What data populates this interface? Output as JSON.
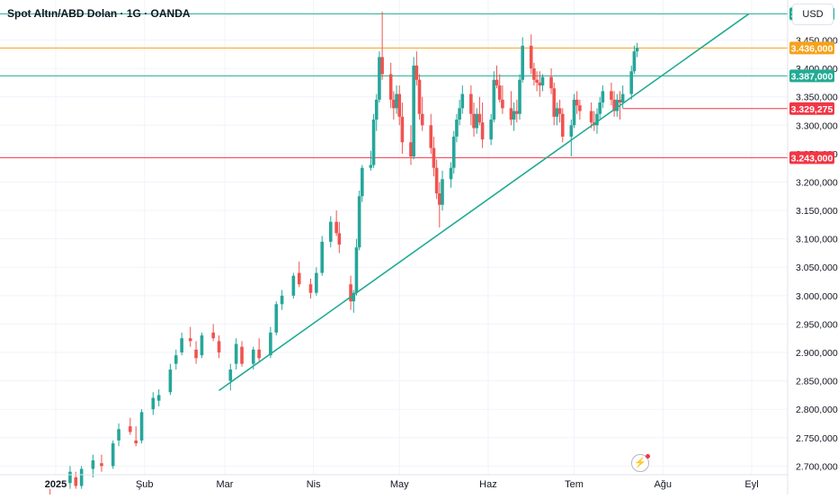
{
  "header": {
    "title": "Spot Altın/ABD Dolan · 1G · OANDA",
    "currency_button": "USD"
  },
  "icons": {
    "alert": "lightning-icon"
  },
  "colors": {
    "up": "#26a69a",
    "down": "#ef5350",
    "teal_line": "#22ab94",
    "orange_line": "#f7a21b",
    "red_line": "#f23645",
    "grid": "#f0f3fa",
    "axis_text": "#131722"
  },
  "chart_data": {
    "type": "candlestick",
    "ylim": [
      2680,
      3530
    ],
    "y_ticks": [
      "2.700,000",
      "2.750,000",
      "2.800,000",
      "2.850,000",
      "2.900,000",
      "2.950,000",
      "3.000,000",
      "3.050,000",
      "3.100,000",
      "3.150,000",
      "3.200,000",
      "3.250,000",
      "3.300,000",
      "3.350,000",
      "3.400,000",
      "3.450,000"
    ],
    "y_tick_values": [
      2700,
      2750,
      2800,
      2850,
      2900,
      2950,
      3000,
      3050,
      3100,
      3150,
      3200,
      3250,
      3300,
      3350,
      3400,
      3450
    ],
    "x_labels": [
      "2025",
      "Şub",
      "Mar",
      "Nis",
      "May",
      "Haz",
      "Tem",
      "Ağu",
      "Eyl"
    ],
    "x_label_dates": [
      "2025-01-01",
      "2025-02-01",
      "2025-03-01",
      "2025-04-01",
      "2025-05-01",
      "2025-06-01",
      "2025-07-01",
      "2025-08-01",
      "2025-09-01"
    ],
    "levels": [
      {
        "label": "3.496,071",
        "value": 3496.071,
        "color": "#22ab94"
      },
      {
        "label": "3.436,000",
        "value": 3436.0,
        "color": "#f7a21b"
      },
      {
        "label": "3.387,000",
        "value": 3387.0,
        "color": "#22ab94"
      },
      {
        "label": "3.329,275",
        "value": 3329.275,
        "color": "#f23645",
        "from_date": "2025-07-18"
      },
      {
        "label": "3.243,000",
        "value": 3243.0,
        "color": "#f23645"
      }
    ],
    "trendline": {
      "from_date": "2025-02-27",
      "from_value": 2833,
      "to_date": "2025-08-31",
      "to_value": 3496.071
    },
    "candles": [
      [
        "2024-12-30",
        2640,
        2660,
        2615,
        2625
      ],
      [
        "2025-01-06",
        2670,
        2700,
        2660,
        2690
      ],
      [
        "2025-01-08",
        2680,
        2690,
        2660,
        2665
      ],
      [
        "2025-01-10",
        2665,
        2700,
        2660,
        2695
      ],
      [
        "2025-01-14",
        2695,
        2720,
        2680,
        2710
      ],
      [
        "2025-01-17",
        2705,
        2720,
        2690,
        2700
      ],
      [
        "2025-01-21",
        2700,
        2745,
        2695,
        2740
      ],
      [
        "2025-01-23",
        2745,
        2775,
        2735,
        2765
      ],
      [
        "2025-01-27",
        2770,
        2785,
        2755,
        2760
      ],
      [
        "2025-01-29",
        2745,
        2770,
        2735,
        2740
      ],
      [
        "2025-01-31",
        2745,
        2800,
        2740,
        2795
      ],
      [
        "2025-02-04",
        2800,
        2830,
        2790,
        2820
      ],
      [
        "2025-02-06",
        2815,
        2835,
        2805,
        2825
      ],
      [
        "2025-02-10",
        2830,
        2880,
        2825,
        2870
      ],
      [
        "2025-02-12",
        2880,
        2905,
        2870,
        2895
      ],
      [
        "2025-02-14",
        2900,
        2935,
        2895,
        2925
      ],
      [
        "2025-02-17",
        2925,
        2945,
        2910,
        2920
      ],
      [
        "2025-02-19",
        2905,
        2920,
        2880,
        2890
      ],
      [
        "2025-02-21",
        2895,
        2935,
        2890,
        2930
      ],
      [
        "2025-02-25",
        2935,
        2950,
        2920,
        2925
      ],
      [
        "2025-02-27",
        2920,
        2930,
        2890,
        2900
      ],
      [
        "2025-03-03",
        2850,
        2880,
        2833,
        2870
      ],
      [
        "2025-03-05",
        2880,
        2925,
        2870,
        2915
      ],
      [
        "2025-03-07",
        2910,
        2920,
        2875,
        2880
      ],
      [
        "2025-03-11",
        2880,
        2910,
        2870,
        2905
      ],
      [
        "2025-03-13",
        2905,
        2925,
        2885,
        2890
      ],
      [
        "2025-03-17",
        2895,
        2945,
        2890,
        2935
      ],
      [
        "2025-03-19",
        2935,
        2990,
        2930,
        2985
      ],
      [
        "2025-03-21",
        2985,
        3010,
        2975,
        3000
      ],
      [
        "2025-03-25",
        3000,
        3040,
        2995,
        3035
      ],
      [
        "2025-03-27",
        3040,
        3060,
        3015,
        3020
      ],
      [
        "2025-03-31",
        3020,
        3030,
        2995,
        3005
      ],
      [
        "2025-04-02",
        3005,
        3050,
        3000,
        3040
      ],
      [
        "2025-04-04",
        3040,
        3105,
        3035,
        3095
      ],
      [
        "2025-04-07",
        3095,
        3140,
        3085,
        3130
      ],
      [
        "2025-04-09",
        3130,
        3150,
        3105,
        3110
      ],
      [
        "2025-04-10",
        3110,
        3130,
        3075,
        3090
      ],
      [
        "2025-04-14",
        3020,
        3035,
        2975,
        2990
      ],
      [
        "2025-04-15",
        2990,
        3010,
        2970,
        3005
      ],
      [
        "2025-04-16",
        3005,
        3100,
        3000,
        3085
      ],
      [
        "2025-04-17",
        3085,
        3185,
        3080,
        3175
      ],
      [
        "2025-04-18",
        3175,
        3230,
        3165,
        3225
      ],
      [
        "2025-04-21",
        3225,
        3255,
        3220,
        3230
      ],
      [
        "2025-04-22",
        3230,
        3320,
        3225,
        3310
      ],
      [
        "2025-04-23",
        3310,
        3355,
        3290,
        3345
      ],
      [
        "2025-04-24",
        3345,
        3430,
        3340,
        3420
      ],
      [
        "2025-04-25",
        3420,
        3500,
        3380,
        3390
      ],
      [
        "2025-04-28",
        3390,
        3410,
        3330,
        3345
      ],
      [
        "2025-04-29",
        3345,
        3360,
        3310,
        3330
      ],
      [
        "2025-04-30",
        3330,
        3370,
        3320,
        3355
      ],
      [
        "2025-05-01",
        3355,
        3370,
        3300,
        3315
      ],
      [
        "2025-05-02",
        3315,
        3340,
        3250,
        3270
      ],
      [
        "2025-05-05",
        3270,
        3300,
        3230,
        3245
      ],
      [
        "2025-05-06",
        3245,
        3420,
        3240,
        3405
      ],
      [
        "2025-05-07",
        3405,
        3430,
        3370,
        3380
      ],
      [
        "2025-05-08",
        3380,
        3390,
        3310,
        3320
      ],
      [
        "2025-05-09",
        3320,
        3350,
        3290,
        3300
      ],
      [
        "2025-05-12",
        3300,
        3320,
        3250,
        3260
      ],
      [
        "2025-05-13",
        3260,
        3280,
        3210,
        3225
      ],
      [
        "2025-05-14",
        3225,
        3240,
        3170,
        3180
      ],
      [
        "2025-05-15",
        3180,
        3200,
        3120,
        3160
      ],
      [
        "2025-05-16",
        3160,
        3220,
        3150,
        3205
      ],
      [
        "2025-05-19",
        3205,
        3235,
        3190,
        3225
      ],
      [
        "2025-05-20",
        3225,
        3290,
        3215,
        3280
      ],
      [
        "2025-05-21",
        3280,
        3320,
        3270,
        3310
      ],
      [
        "2025-05-22",
        3310,
        3345,
        3300,
        3330
      ],
      [
        "2025-05-23",
        3330,
        3370,
        3320,
        3355
      ],
      [
        "2025-05-26",
        3355,
        3370,
        3300,
        3320
      ],
      [
        "2025-05-27",
        3320,
        3340,
        3280,
        3295
      ],
      [
        "2025-05-28",
        3295,
        3330,
        3285,
        3320
      ],
      [
        "2025-05-29",
        3320,
        3350,
        3300,
        3305
      ],
      [
        "2025-05-30",
        3305,
        3340,
        3260,
        3275
      ],
      [
        "2025-06-02",
        3275,
        3320,
        3265,
        3310
      ],
      [
        "2025-06-03",
        3310,
        3395,
        3305,
        3380
      ],
      [
        "2025-06-04",
        3380,
        3405,
        3365,
        3370
      ],
      [
        "2025-06-05",
        3370,
        3390,
        3340,
        3345
      ],
      [
        "2025-06-06",
        3345,
        3370,
        3320,
        3330
      ],
      [
        "2025-06-09",
        3330,
        3360,
        3300,
        3310
      ],
      [
        "2025-06-10",
        3310,
        3340,
        3290,
        3325
      ],
      [
        "2025-06-11",
        3325,
        3345,
        3305,
        3320
      ],
      [
        "2025-06-12",
        3320,
        3390,
        3310,
        3380
      ],
      [
        "2025-06-13",
        3380,
        3455,
        3375,
        3440
      ],
      [
        "2025-06-16",
        3440,
        3460,
        3390,
        3400
      ],
      [
        "2025-06-17",
        3400,
        3410,
        3370,
        3380
      ],
      [
        "2025-06-18",
        3380,
        3395,
        3360,
        3375
      ],
      [
        "2025-06-19",
        3375,
        3395,
        3350,
        3370
      ],
      [
        "2025-06-20",
        3370,
        3390,
        3360,
        3385
      ],
      [
        "2025-06-23",
        3385,
        3400,
        3355,
        3365
      ],
      [
        "2025-06-24",
        3365,
        3375,
        3300,
        3315
      ],
      [
        "2025-06-25",
        3315,
        3340,
        3300,
        3330
      ],
      [
        "2025-06-26",
        3330,
        3345,
        3305,
        3320
      ],
      [
        "2025-06-27",
        3320,
        3330,
        3270,
        3280
      ],
      [
        "2025-06-30",
        3280,
        3310,
        3245,
        3300
      ],
      [
        "2025-07-01",
        3300,
        3355,
        3295,
        3345
      ],
      [
        "2025-07-02",
        3345,
        3360,
        3320,
        3335
      ],
      [
        "2025-07-03",
        3335,
        3345,
        3310,
        3325
      ],
      [
        "2025-07-07",
        3325,
        3340,
        3295,
        3305
      ],
      [
        "2025-07-08",
        3305,
        3325,
        3290,
        3300
      ],
      [
        "2025-07-09",
        3300,
        3330,
        3285,
        3320
      ],
      [
        "2025-07-10",
        3320,
        3350,
        3310,
        3340
      ],
      [
        "2025-07-11",
        3340,
        3370,
        3330,
        3360
      ],
      [
        "2025-07-14",
        3360,
        3375,
        3335,
        3345
      ],
      [
        "2025-07-15",
        3345,
        3360,
        3315,
        3325
      ],
      [
        "2025-07-16",
        3325,
        3355,
        3315,
        3345
      ],
      [
        "2025-07-17",
        3345,
        3360,
        3310,
        3340
      ],
      [
        "2025-07-18",
        3340,
        3370,
        3330,
        3355
      ],
      [
        "2025-07-21",
        3355,
        3405,
        3345,
        3395
      ],
      [
        "2025-07-22",
        3395,
        3440,
        3390,
        3430
      ],
      [
        "2025-07-23",
        3430,
        3445,
        3420,
        3436
      ]
    ]
  }
}
